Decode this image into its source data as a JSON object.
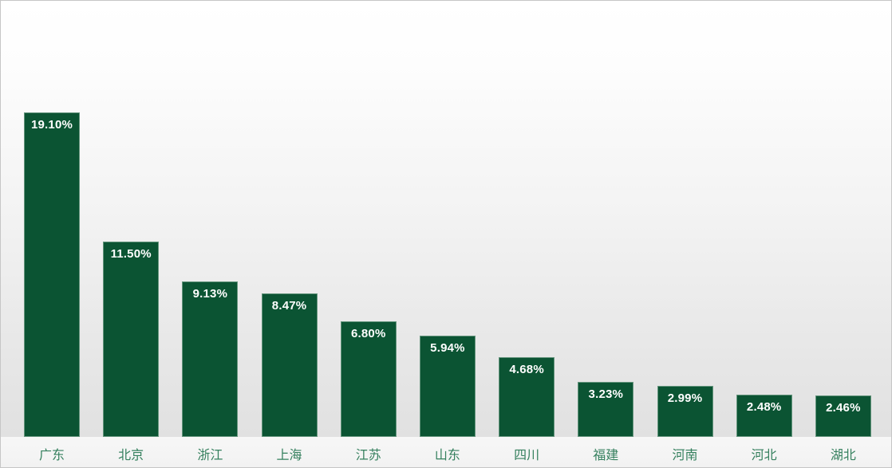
{
  "chart_data": {
    "type": "bar",
    "title": "",
    "xlabel": "",
    "ylabel": "",
    "categories": [
      "广东",
      "北京",
      "浙江",
      "上海",
      "江苏",
      "山东",
      "四川",
      "福建",
      "河南",
      "河北",
      "湖北"
    ],
    "values": [
      19.1,
      11.5,
      9.13,
      8.47,
      6.8,
      5.94,
      4.68,
      3.23,
      2.99,
      2.48,
      2.46
    ],
    "value_labels": [
      "19.10%",
      "11.50%",
      "9.13%",
      "8.47%",
      "6.80%",
      "5.94%",
      "4.68%",
      "3.23%",
      "2.99%",
      "2.48%",
      "2.46%"
    ],
    "ylim": [
      0,
      19.1
    ],
    "grid": false,
    "legend": false,
    "value_label_position": "inside-top",
    "colors": {
      "bar_fill": "#0b5433",
      "bar_edge_highlight": "#a8c4b2",
      "value_label": "#ffffff",
      "category_label": "#35805e",
      "background_top": "#ffffff",
      "background_bottom": "#dfdfdf",
      "footer_strip": "#f4f4f4",
      "frame_border": "#c6c6c6",
      "shadow": "#6e6e6e"
    }
  }
}
